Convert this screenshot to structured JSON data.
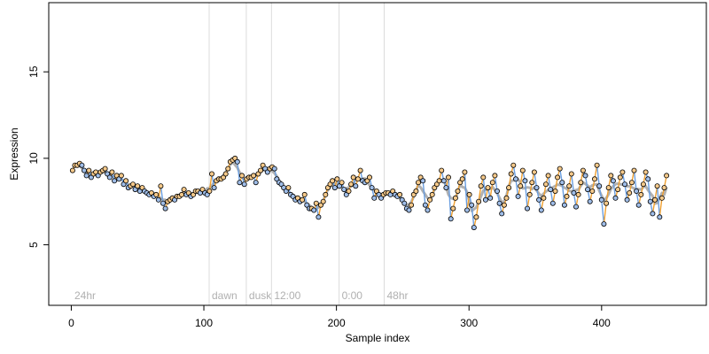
{
  "chart_data": {
    "type": "scatter",
    "xlabel": "Sample index",
    "ylabel": "Expression",
    "xlim": [
      -17,
      479
    ],
    "ylim": [
      1.5,
      19.0
    ],
    "x_ticks": [
      "0",
      "100",
      "200",
      "300",
      "400"
    ],
    "y_ticks": [
      "5",
      "10",
      "15"
    ],
    "grid": false,
    "markers": [
      {
        "x": 104,
        "label": "dawn"
      },
      {
        "x": 132,
        "label": "dusk"
      },
      {
        "x": 151,
        "label": "12:00"
      },
      {
        "x": 202,
        "label": "0:00"
      },
      {
        "x": 236,
        "label": "48hr"
      }
    ],
    "corner_label": "24hr",
    "colors": {
      "point_fill_up": "#f5c98a",
      "point_fill_down": "#9fbde8",
      "segment_up": "#f0a030",
      "segment_down": "#6a9ee0",
      "trend": "#a8a8a8",
      "marker_line": "#dcdcdc",
      "marker_text": "#b0b0b0"
    },
    "series": [
      {
        "values": [
          9.3,
          9.6,
          9.6,
          9.7,
          9.6,
          9.3,
          9.0,
          9.3,
          8.9,
          9.1,
          9.2,
          9.0,
          9.2,
          9.3,
          9.4,
          9.1,
          8.9,
          9.2,
          8.7,
          9.0,
          8.8,
          9.0,
          8.5,
          8.7,
          8.3,
          8.4,
          8.5,
          8.2,
          8.4,
          8.1,
          8.3,
          8.1,
          8.0,
          7.9,
          8.0,
          7.8,
          7.9,
          7.6,
          8.4,
          7.4,
          7.1,
          7.5,
          7.6,
          7.7,
          7.6,
          7.8,
          7.8,
          7.9,
          8.2,
          7.9,
          8.0,
          7.8,
          7.9,
          8.1,
          8.1,
          8.0,
          8.2,
          8.0,
          7.9,
          8.1,
          9.1,
          8.3,
          8.7,
          8.8,
          8.8,
          8.9,
          9.1,
          9.4,
          9.8,
          9.9,
          10.0,
          9.8,
          8.6,
          9.0,
          8.5,
          8.8,
          8.9,
          8.9,
          9.0,
          8.6,
          9.1,
          9.3,
          9.6,
          9.4,
          9.2,
          9.4,
          9.5,
          9.4,
          8.8,
          8.6,
          8.5,
          8.3,
          8.1,
          8.3,
          7.9,
          7.8,
          7.6,
          7.7,
          7.5,
          7.6,
          7.9,
          7.3,
          7.1,
          7.1,
          7.0,
          7.4,
          6.6,
          7.3,
          7.5,
          7.9,
          8.3,
          8.5,
          8.7,
          8.3,
          8.8,
          8.4,
          8.6,
          8.2,
          7.9,
          8.1,
          8.5,
          8.9,
          8.4,
          8.8,
          9.3,
          8.7,
          8.6,
          8.7,
          8.9,
          8.3,
          7.7,
          8.1,
          7.9,
          7.7,
          7.9,
          8.0,
          8.0,
          7.9,
          8.1,
          7.9,
          7.8,
          7.9,
          7.6,
          7.4,
          7.1,
          7.0,
          7.3,
          7.9,
          8.1,
          8.6,
          8.9,
          8.7,
          7.3,
          7.0,
          7.6,
          7.9,
          8.3,
          8.5,
          8.7,
          9.3,
          8.7,
          8.3,
          8.9,
          6.5,
          7.1,
          7.7,
          8.1,
          8.6,
          8.8,
          9.2,
          7.0,
          7.9,
          7.3,
          6.0,
          6.6,
          7.5,
          8.4,
          8.9,
          7.6,
          8.3,
          7.7,
          8.6,
          9.0,
          8.1,
          7.4,
          6.8,
          7.3,
          7.7,
          8.3,
          9.1,
          9.6,
          8.8,
          7.8,
          8.4,
          9.3,
          8.7,
          7.1,
          7.9,
          8.6,
          9.2,
          8.3,
          7.6,
          7.0,
          7.7,
          8.5,
          9.0,
          8.2,
          7.4,
          8.1,
          8.9,
          9.4,
          8.6,
          7.3,
          7.8,
          8.4,
          9.1,
          8.0,
          7.2,
          7.9,
          8.6,
          9.3,
          9.0,
          8.2,
          7.5,
          8.1,
          8.8,
          9.6,
          8.4,
          7.6,
          6.2,
          7.4,
          8.3,
          9.0,
          8.7,
          7.7,
          8.2,
          8.9,
          9.2,
          8.5,
          7.6,
          8.0,
          8.6,
          9.3,
          8.1,
          7.3,
          7.9,
          8.5,
          9.2,
          8.8,
          7.5,
          6.8,
          7.6,
          8.4,
          6.6,
          7.7,
          8.3,
          9.0
        ],
        "x_start": 1,
        "x_step": 1.75
      }
    ]
  }
}
